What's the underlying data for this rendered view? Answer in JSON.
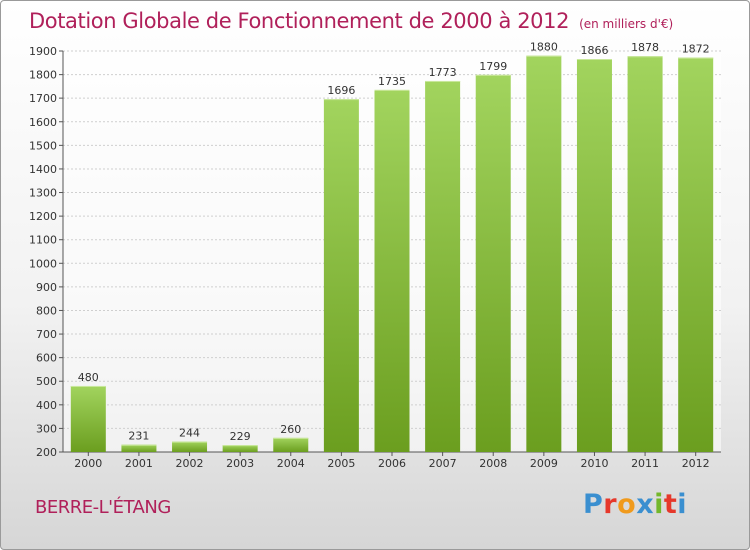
{
  "title": "Dotation Globale de Fonctionnement de 2000 à 2012",
  "unit_note": "(en milliers d'€)",
  "commune": "BERRE-L'ÉTANG",
  "logo": {
    "letters": [
      "P",
      "r",
      "o",
      "x",
      "i",
      "t",
      "i"
    ],
    "colors": [
      "#3a8fd0",
      "#e6382b",
      "#f09a1c",
      "#3a8fd0",
      "#73b72b",
      "#e6382b",
      "#3a8fd0"
    ]
  },
  "colors": {
    "title": "#b0205a",
    "bar_light": "#a2d45e",
    "bar_dark": "#6b9e1f"
  },
  "chart_data": {
    "type": "bar",
    "title": "Dotation Globale de Fonctionnement de 2000 à 2012",
    "subtitle": "(en milliers d'€)",
    "categories": [
      "2000",
      "2001",
      "2002",
      "2003",
      "2004",
      "2005",
      "2006",
      "2007",
      "2008",
      "2009",
      "2010",
      "2011",
      "2012"
    ],
    "values": [
      480,
      231,
      244,
      229,
      260,
      1696,
      1735,
      1773,
      1799,
      1880,
      1866,
      1878,
      1872
    ],
    "ylim": [
      200,
      1900
    ],
    "yticks": [
      200,
      300,
      400,
      500,
      600,
      700,
      800,
      900,
      1000,
      1100,
      1200,
      1300,
      1400,
      1500,
      1600,
      1700,
      1800,
      1900
    ],
    "grid": true,
    "legend": "none"
  }
}
